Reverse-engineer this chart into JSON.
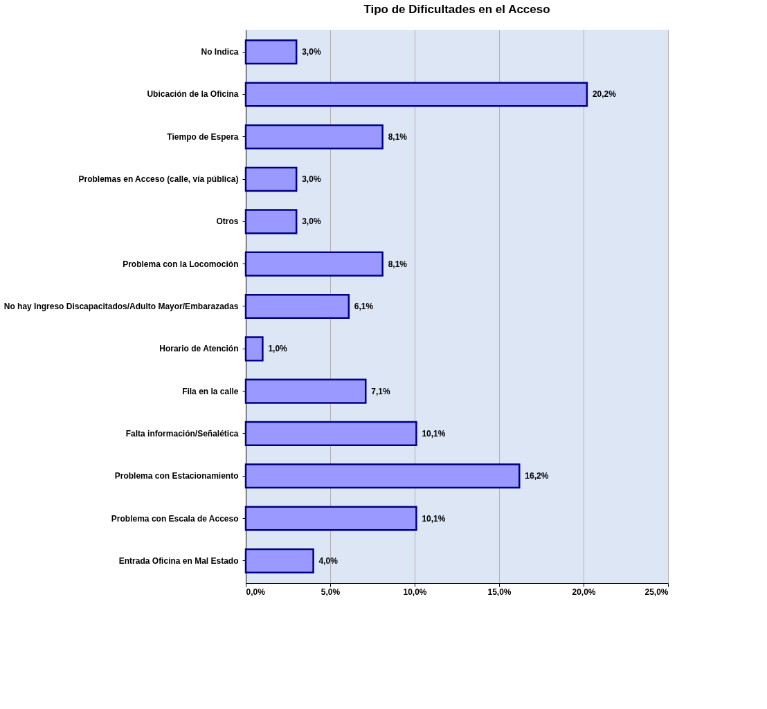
{
  "chart_data": {
    "type": "bar",
    "orientation": "horizontal",
    "title": "Tipo de Dificultades en el Acceso",
    "categories": [
      "No Indica",
      "Ubicación de la Oficina",
      "Tiempo de Espera",
      "Problemas en Acceso (calle, vía pública)",
      "Otros",
      "Problema con la Locomoción",
      "No hay Ingreso Discapacitados/Adulto Mayor/Embarazadas",
      "Horario de Atención",
      "Fila en la calle",
      "Falta información/Señalética",
      "Problema con Estacionamiento",
      "Problema con Escala de Acceso",
      "Entrada Oficina en Mal Estado"
    ],
    "values": [
      3.0,
      20.2,
      8.1,
      3.0,
      3.0,
      8.1,
      6.1,
      1.0,
      7.1,
      10.1,
      16.2,
      10.1,
      4.0
    ],
    "value_labels": [
      "3,0%",
      "20,2%",
      "8,1%",
      "3,0%",
      "3,0%",
      "8,1%",
      "6,1%",
      "1,0%",
      "7,1%",
      "10,1%",
      "16,2%",
      "10,1%",
      "4,0%"
    ],
    "color": "#9999ff",
    "xlim": [
      0,
      25
    ],
    "xticks": [
      {
        "value": 0,
        "label": "0,0%"
      },
      {
        "value": 5,
        "label": "5,0%"
      },
      {
        "value": 10,
        "label": "10,0%"
      },
      {
        "value": 15,
        "label": "15,0%"
      },
      {
        "value": 20,
        "label": "20,0%"
      },
      {
        "value": 25,
        "label": "25,0%"
      }
    ],
    "grid": "x"
  }
}
